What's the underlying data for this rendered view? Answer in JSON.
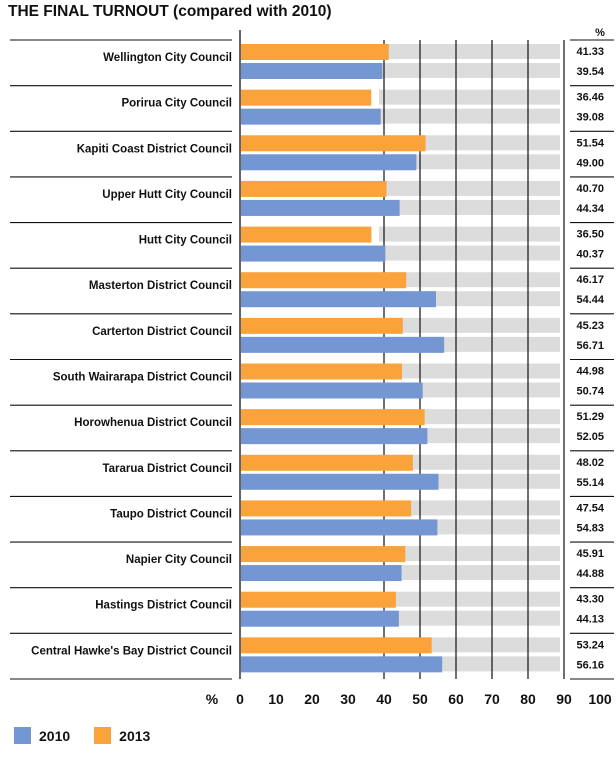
{
  "title": "THE FINAL TURNOUT (compared with 2010)",
  "chart_data": {
    "type": "bar",
    "orientation": "horizontal",
    "title": "THE FINAL TURNOUT (compared with 2010)",
    "value_header": "%",
    "xlabel": "%",
    "xlim": [
      0,
      100
    ],
    "xticks": [
      "0",
      "10",
      "20",
      "30",
      "40",
      "50",
      "60",
      "70",
      "80",
      "90",
      "100"
    ],
    "categories": [
      "Wellington City Council",
      "Porirua City Council",
      "Kapiti Coast District Council",
      "Upper Hutt City Council",
      "Hutt City Council",
      "Masterton District Council",
      "Carterton District Council",
      "South Wairarapa District Council",
      "Horowhenua District Council",
      "Tararua District Council",
      "Taupo District Council",
      "Napier City Council",
      "Hastings District Council",
      "Central Hawke's Bay District Council"
    ],
    "series": [
      {
        "name": "2013",
        "color": "#f9a33a",
        "values": [
          41.33,
          36.46,
          51.54,
          40.7,
          36.5,
          46.17,
          45.23,
          44.98,
          51.29,
          48.02,
          47.54,
          45.91,
          43.3,
          53.24
        ],
        "labels": [
          "41.33",
          "36.46",
          "51.54",
          "40.70",
          "36.50",
          "46.17",
          "45.23",
          "44.98",
          "51.29",
          "48.02",
          "47.54",
          "45.91",
          "43.30",
          "53.24"
        ]
      },
      {
        "name": "2010",
        "color": "#7496d2",
        "values": [
          39.54,
          39.08,
          49.0,
          44.34,
          40.37,
          54.44,
          56.71,
          50.74,
          52.05,
          55.14,
          54.83,
          44.88,
          44.13,
          56.16
        ],
        "labels": [
          "39.54",
          "39.08",
          "49.00",
          "44.34",
          "40.37",
          "54.44",
          "56.71",
          "50.74",
          "52.05",
          "55.14",
          "54.83",
          "44.88",
          "44.13",
          "56.16"
        ]
      }
    ],
    "legend": {
      "position": "bottom-left",
      "items": [
        {
          "label": "2010",
          "color": "#7496d2"
        },
        {
          "label": "2013",
          "color": "#f9a33a"
        }
      ]
    },
    "grid": true
  }
}
